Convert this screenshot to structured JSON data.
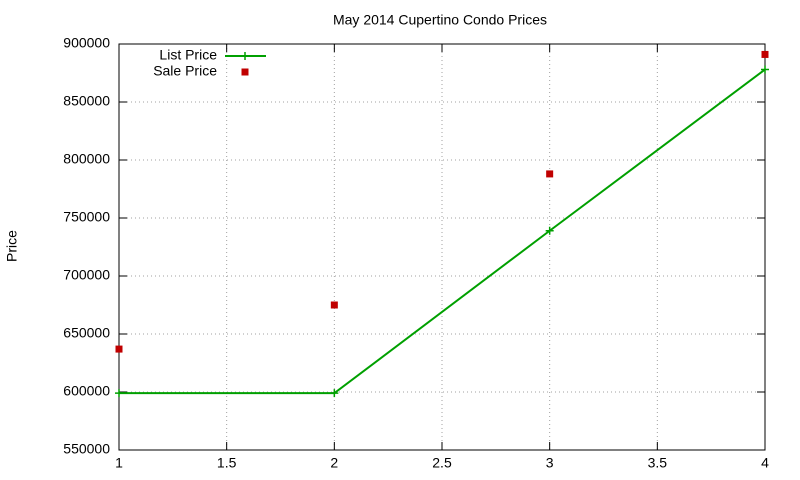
{
  "chart_data": {
    "type": "line",
    "title": "May 2014 Cupertino Condo Prices",
    "y_label": "Price",
    "x": [
      1,
      2,
      3,
      4
    ],
    "series": [
      {
        "name": "List Price",
        "color": "#00a000",
        "mode": "linespoints",
        "values": [
          599000,
          599000,
          739000,
          878000
        ]
      },
      {
        "name": "Sale Price",
        "color": "#c00000",
        "mode": "points",
        "values": [
          637000,
          675000,
          788000,
          891000
        ]
      }
    ],
    "xlim": [
      1,
      4
    ],
    "xticks": [
      1,
      1.5,
      2,
      2.5,
      3,
      3.5,
      4
    ],
    "ylim": [
      550000,
      900000
    ],
    "yticks": [
      550000,
      600000,
      650000,
      700000,
      750000,
      800000,
      850000,
      900000
    ],
    "grid": true,
    "legend": "top-left"
  }
}
